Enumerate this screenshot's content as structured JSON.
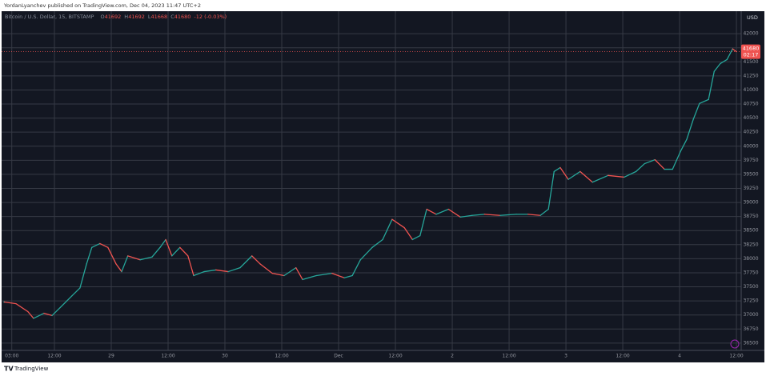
{
  "header": {
    "publisher": "YordanLyanchev published on TradingView.com, Dec 04, 2023 11:47 UTC+2"
  },
  "footer": {
    "brand": "TradingView"
  },
  "chart_data": {
    "type": "line",
    "title": "Bitcoin / U.S. Dollar, 15, BITSTAMP",
    "ohlc": [
      {
        "label": "O",
        "value": "41692"
      },
      {
        "label": "H",
        "value": "41692"
      },
      {
        "label": "L",
        "value": "41668"
      },
      {
        "label": "C",
        "value": "41680"
      }
    ],
    "change": "-12 (-0.03%)",
    "currency": "USD",
    "last_price": "41680",
    "countdown": "02:17",
    "up_color": "#26a69a",
    "down_color": "#ef5350",
    "grid": true,
    "x": [
      1.4,
      3.9,
      6.4,
      7.6,
      9.8,
      11.5,
      13.2,
      15.7,
      17.4,
      18.8,
      19.9,
      21.6,
      23.3,
      25.0,
      26.2,
      27.5,
      30.1,
      32.6,
      34.3,
      35.5,
      36.8,
      38.5,
      40.2,
      41.4,
      43.6,
      46.1,
      48.7,
      51.2,
      53.7,
      55.4,
      58.0,
      60.5,
      63.0,
      64.4,
      67.3,
      70.6,
      73.2,
      74.9,
      76.6,
      79.1,
      81.3,
      83.3,
      85.9,
      87.6,
      89.2,
      90.6,
      92.6,
      95.2,
      97.7,
      100.2,
      102.8,
      106.1,
      109.5,
      112.0,
      114.6,
      116.3,
      117.5,
      118.8,
      120.5,
      123.0,
      125.6,
      128.9,
      132.3,
      134.8,
      136.6,
      138.8,
      140.8,
      142.5,
      144.2,
      145.5,
      146.9,
      148.2,
      150.1,
      151.3,
      152.6,
      154.0,
      155.2,
      156.0
    ],
    "values": [
      37230,
      37200,
      37060,
      36940,
      37030,
      36990,
      37130,
      37340,
      37480,
      37910,
      38200,
      38270,
      38200,
      37910,
      37770,
      38050,
      37980,
      38030,
      38200,
      38340,
      38050,
      38200,
      38050,
      37700,
      37770,
      37800,
      37770,
      37840,
      38050,
      37910,
      37740,
      37700,
      37840,
      37630,
      37700,
      37740,
      37660,
      37700,
      37980,
      38200,
      38340,
      38700,
      38550,
      38340,
      38410,
      38880,
      38790,
      38880,
      38740,
      38770,
      38790,
      38770,
      38790,
      38790,
      38770,
      38880,
      39550,
      39620,
      39410,
      39550,
      39360,
      39480,
      39450,
      39550,
      39690,
      39760,
      39590,
      39590,
      39910,
      40120,
      40480,
      40760,
      40830,
      41330,
      41470,
      41540,
      41730,
      41680
    ],
    "xlim": [
      0.85,
      157.0
    ],
    "xticks": [
      {
        "value": 3,
        "label": "03:00"
      },
      {
        "value": 12,
        "label": "12:00"
      },
      {
        "value": 24,
        "label": "29"
      },
      {
        "value": 36,
        "label": "12:00"
      },
      {
        "value": 48,
        "label": "30"
      },
      {
        "value": 60,
        "label": "12:00"
      },
      {
        "value": 72,
        "label": "Dec"
      },
      {
        "value": 84,
        "label": "12:00"
      },
      {
        "value": 96,
        "label": "2"
      },
      {
        "value": 108,
        "label": "12:00"
      },
      {
        "value": 120,
        "label": "3"
      },
      {
        "value": 132,
        "label": "12:00"
      },
      {
        "value": 144,
        "label": "4"
      },
      {
        "value": 156,
        "label": "12:00"
      }
    ],
    "ylim": [
      36370,
      42400
    ],
    "yticks": [
      36500,
      36750,
      37000,
      37250,
      37500,
      37750,
      38000,
      38250,
      38500,
      38750,
      39000,
      39250,
      39500,
      39750,
      40000,
      40250,
      40500,
      40750,
      41000,
      41250,
      41500,
      41750,
      42000
    ]
  }
}
